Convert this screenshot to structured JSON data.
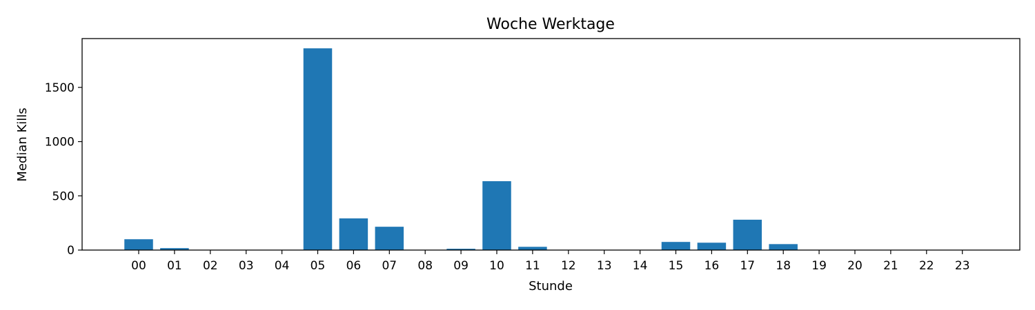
{
  "chart_data": {
    "type": "bar",
    "title": "Woche Werktage",
    "xlabel": "Stunde",
    "ylabel": "Median Kills",
    "categories": [
      "00",
      "01",
      "02",
      "03",
      "04",
      "05",
      "06",
      "07",
      "08",
      "09",
      "10",
      "11",
      "12",
      "13",
      "14",
      "15",
      "16",
      "17",
      "18",
      "19",
      "20",
      "21",
      "22",
      "23"
    ],
    "values": [
      100,
      18,
      0,
      0,
      0,
      1860,
      292,
      215,
      0,
      12,
      635,
      30,
      0,
      0,
      0,
      75,
      68,
      280,
      55,
      0,
      0,
      0,
      0,
      0
    ],
    "ylim": [
      0,
      1950
    ],
    "yticks": [
      0,
      500,
      1000,
      1500
    ],
    "grid": false,
    "legend": "none",
    "bar_color": "#1f77b4"
  }
}
